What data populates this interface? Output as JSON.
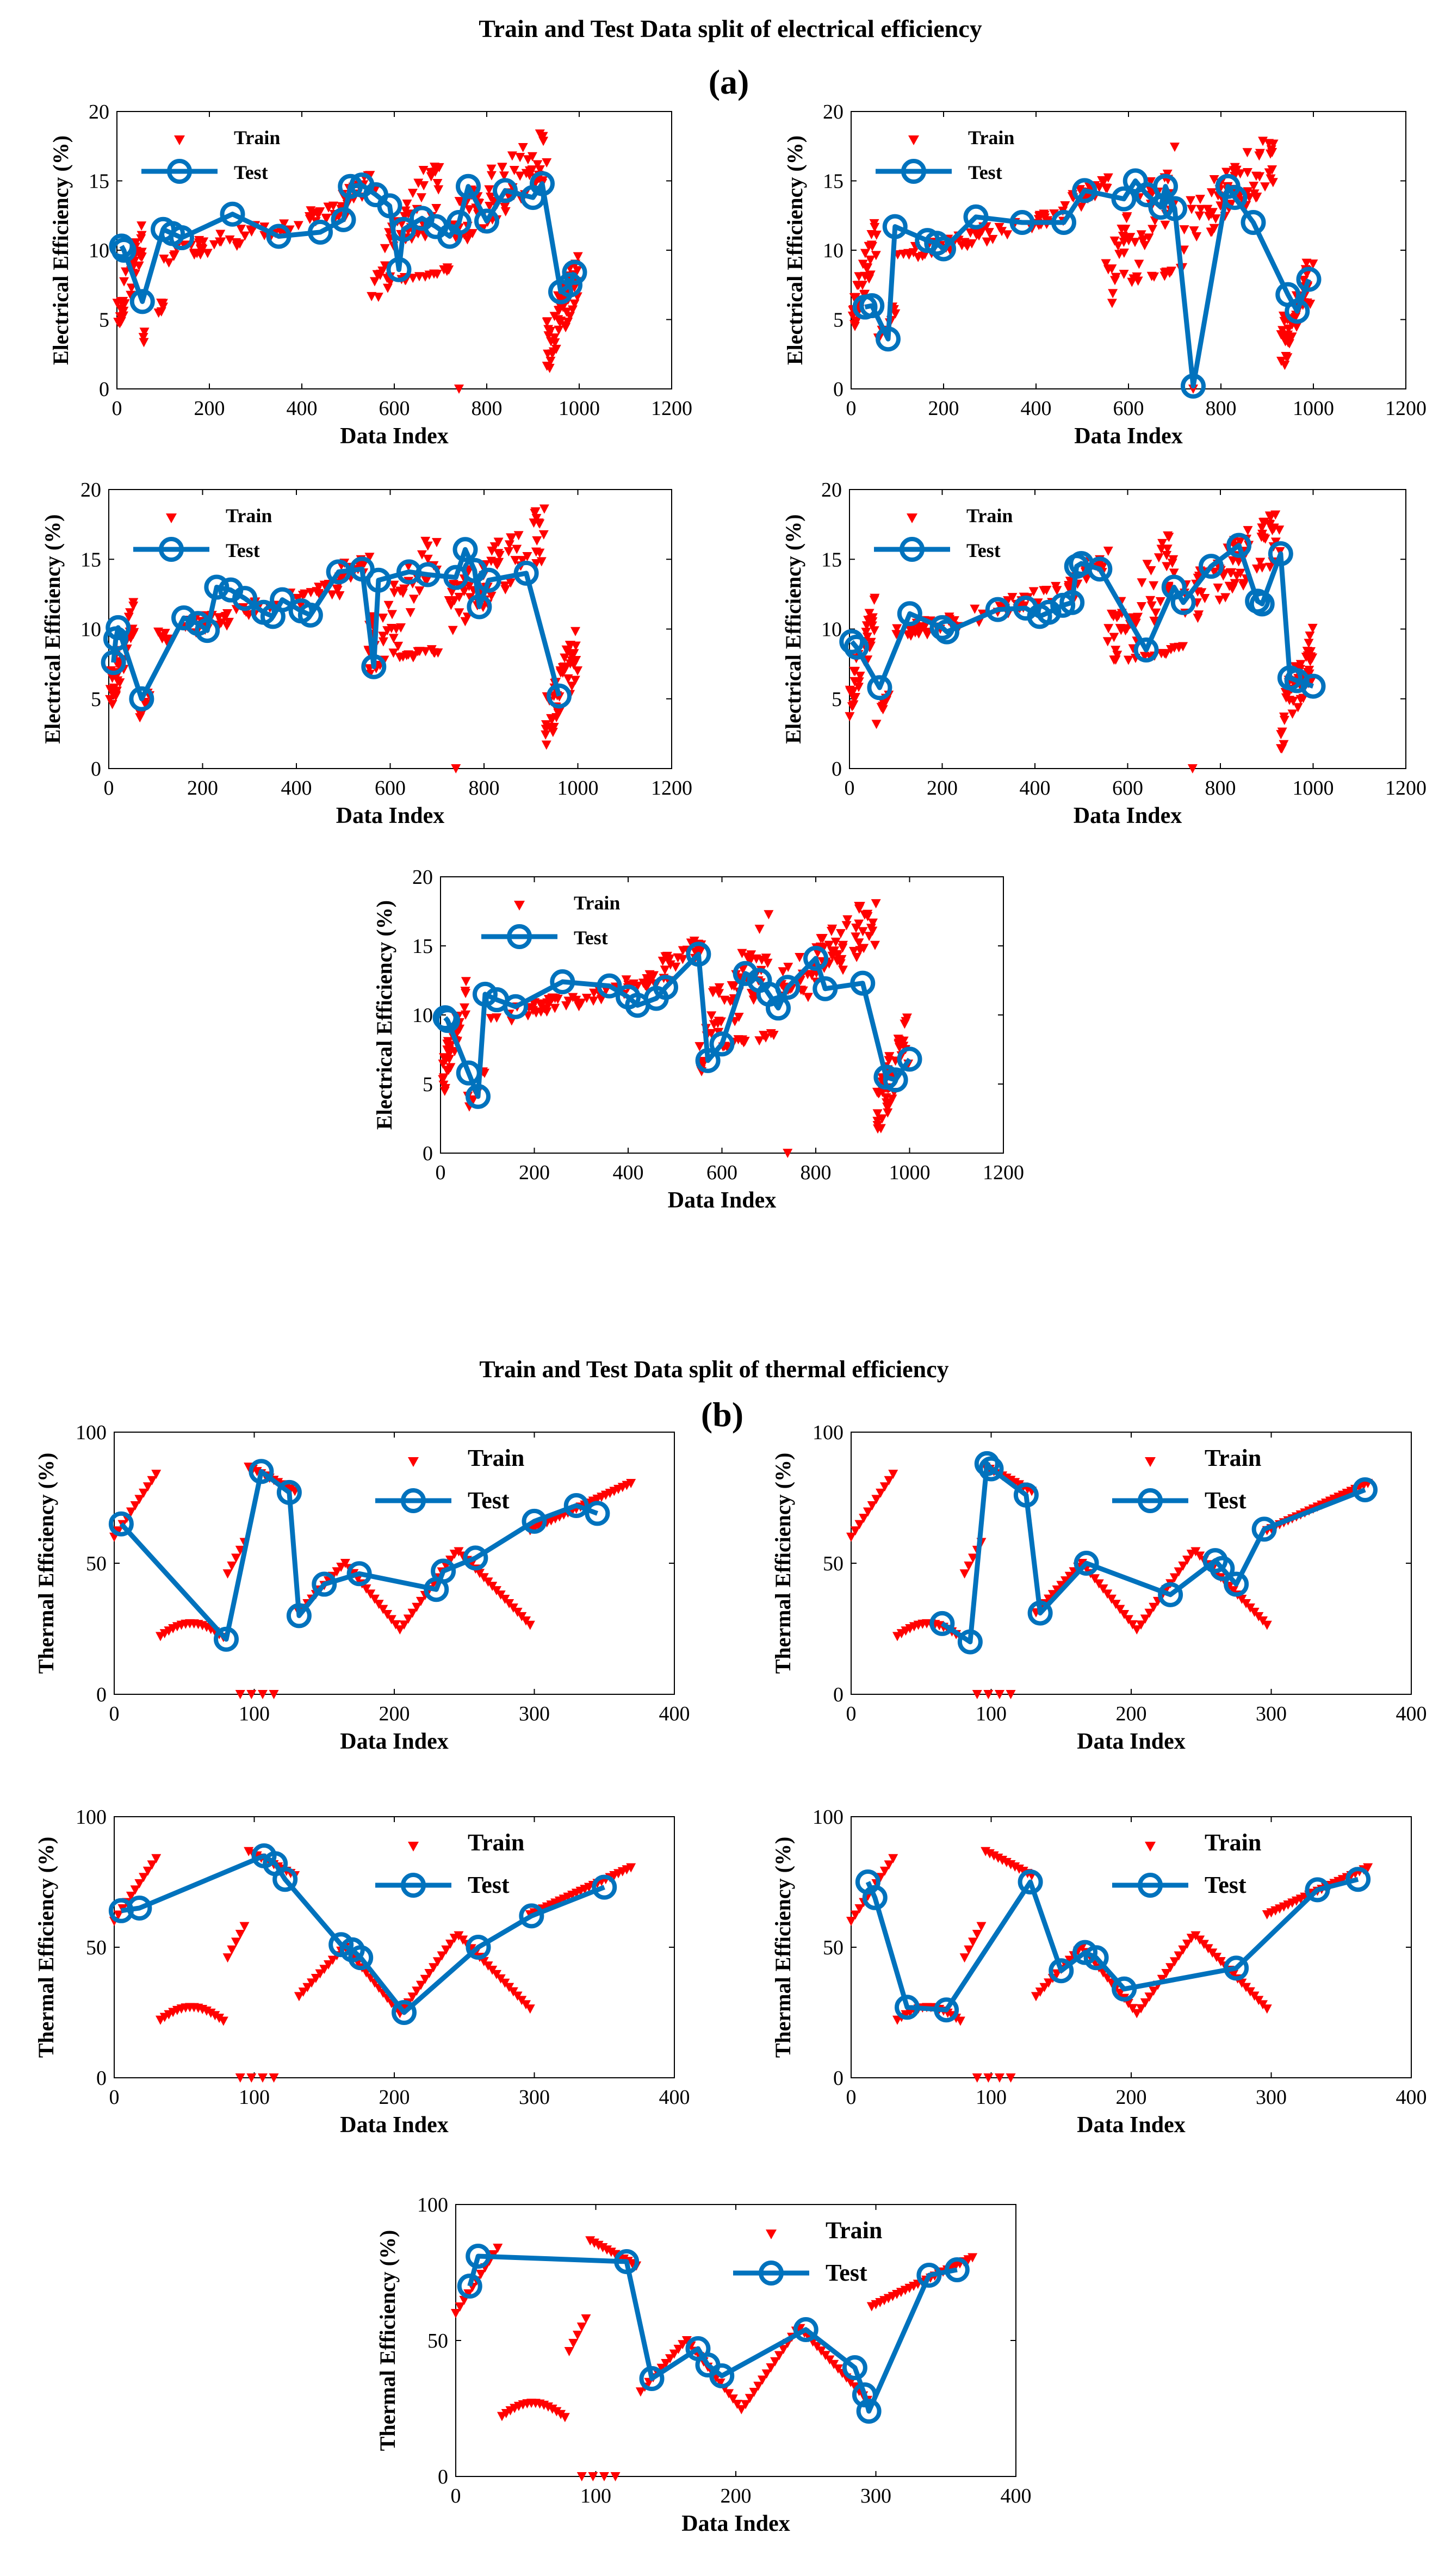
{
  "figure": {
    "section_a": {
      "title": "Train and Test Data split of electrical efficiency",
      "label": "(a)"
    },
    "section_b": {
      "title": "Train and Test Data split of thermal efficiency",
      "label": "(b)"
    }
  },
  "colors": {
    "train": "#ff0000",
    "test": "#0072bd",
    "axis": "#000000",
    "text": "#000000",
    "background": "#ffffff"
  },
  "chart_data": [
    {
      "type": "scatter",
      "section": "a",
      "title": "",
      "xlabel": "Data Index",
      "ylabel": "Electrical Efficiency (%)",
      "xlim": [
        0,
        1200
      ],
      "ylim": [
        0,
        20
      ],
      "xticks": [
        0,
        200,
        400,
        600,
        800,
        1000,
        1200
      ],
      "yticks": [
        0,
        5,
        10,
        15,
        20
      ],
      "legend": [
        "Train",
        "Test"
      ],
      "series": [
        {
          "name": "Test",
          "x": [
            10,
            15,
            55,
            100,
            120,
            140,
            250,
            350,
            440,
            490,
            505,
            530,
            560,
            590,
            610,
            620,
            660,
            690,
            720,
            740,
            760,
            800,
            840,
            900,
            920,
            960,
            980,
            990
          ],
          "y": [
            10.3,
            10.0,
            6.3,
            11.5,
            11.2,
            10.9,
            12.6,
            11.0,
            11.3,
            12.2,
            14.6,
            14.7,
            14.0,
            13.2,
            8.6,
            11.5,
            12.3,
            11.7,
            11.0,
            12.0,
            14.6,
            12.1,
            14.3,
            13.8,
            14.8,
            7.0,
            7.5,
            8.4
          ]
        }
      ]
    },
    {
      "type": "scatter",
      "section": "a",
      "title": "",
      "xlabel": "Data Index",
      "ylabel": "Electrical Efficiency (%)",
      "xlim": [
        0,
        1200
      ],
      "ylim": [
        0,
        20
      ],
      "xticks": [
        0,
        200,
        400,
        600,
        800,
        1000,
        1200
      ],
      "yticks": [
        0,
        5,
        10,
        15,
        20
      ],
      "legend": [
        "Train",
        "Test"
      ],
      "series": [
        {
          "name": "Test",
          "x": [
            30,
            45,
            80,
            95,
            165,
            185,
            200,
            270,
            370,
            460,
            505,
            590,
            615,
            640,
            670,
            680,
            700,
            740,
            815,
            830,
            870,
            945,
            965,
            990
          ],
          "y": [
            5.9,
            6.0,
            3.6,
            11.7,
            10.7,
            10.5,
            10.1,
            12.4,
            12.0,
            12.0,
            14.3,
            13.7,
            15.0,
            14.0,
            13.1,
            14.6,
            13.0,
            0.2,
            14.6,
            13.8,
            12.0,
            6.8,
            5.6,
            7.9
          ]
        }
      ]
    },
    {
      "type": "scatter",
      "section": "a",
      "title": "",
      "xlabel": "Data Index",
      "ylabel": "Electrical Efficiency (%)",
      "xlim": [
        0,
        1200
      ],
      "ylim": [
        0,
        20
      ],
      "xticks": [
        0,
        200,
        400,
        600,
        800,
        1000,
        1200
      ],
      "yticks": [
        0,
        5,
        10,
        15,
        20
      ],
      "legend": [
        "Train",
        "Test"
      ],
      "series": [
        {
          "name": "Test",
          "x": [
            10,
            15,
            20,
            70,
            160,
            190,
            210,
            230,
            260,
            290,
            330,
            350,
            370,
            410,
            430,
            490,
            540,
            565,
            575,
            640,
            680,
            740,
            760,
            780,
            790,
            810,
            890,
            960
          ],
          "y": [
            7.6,
            9.3,
            10.1,
            5.0,
            10.8,
            10.4,
            9.9,
            13.0,
            12.8,
            12.2,
            11.2,
            10.9,
            12.1,
            11.3,
            11.0,
            14.1,
            14.3,
            7.3,
            13.5,
            14.1,
            13.9,
            13.7,
            15.7,
            14.2,
            11.6,
            13.5,
            14.0,
            5.2
          ]
        }
      ]
    },
    {
      "type": "scatter",
      "section": "a",
      "title": "",
      "xlabel": "Data Index",
      "ylabel": "Electrical Efficiency (%)",
      "xlim": [
        0,
        1200
      ],
      "ylim": [
        0,
        20
      ],
      "xticks": [
        0,
        200,
        400,
        600,
        800,
        1000,
        1200
      ],
      "yticks": [
        0,
        5,
        10,
        15,
        20
      ],
      "legend": [
        "Train",
        "Test"
      ],
      "series": [
        {
          "name": "Test",
          "x": [
            5,
            15,
            65,
            130,
            200,
            210,
            320,
            380,
            410,
            430,
            460,
            480,
            490,
            500,
            540,
            640,
            700,
            720,
            780,
            840,
            880,
            890,
            930,
            950,
            965,
            1000
          ],
          "y": [
            9.1,
            8.7,
            5.8,
            11.1,
            10.1,
            9.8,
            11.4,
            11.5,
            10.9,
            11.2,
            11.7,
            11.9,
            14.5,
            14.7,
            14.3,
            8.5,
            13.0,
            11.9,
            14.5,
            16.0,
            12.0,
            11.8,
            15.4,
            6.5,
            6.3,
            5.9
          ]
        }
      ]
    },
    {
      "type": "scatter",
      "section": "a",
      "title": "",
      "xlabel": "Data Index",
      "ylabel": "Electrical Efficiency (%)",
      "xlim": [
        0,
        1200
      ],
      "ylim": [
        0,
        20
      ],
      "xticks": [
        0,
        200,
        400,
        600,
        800,
        1000,
        1200
      ],
      "yticks": [
        0,
        5,
        10,
        15,
        20
      ],
      "legend": [
        "Train",
        "Test"
      ],
      "series": [
        {
          "name": "Test",
          "x": [
            10,
            15,
            60,
            80,
            95,
            120,
            160,
            260,
            360,
            400,
            420,
            460,
            480,
            550,
            570,
            600,
            650,
            680,
            700,
            720,
            740,
            800,
            820,
            900,
            950,
            970,
            1000
          ],
          "y": [
            9.8,
            9.6,
            5.8,
            4.1,
            11.5,
            11.1,
            10.6,
            12.4,
            12.1,
            11.3,
            10.7,
            11.2,
            12.0,
            14.4,
            6.7,
            7.9,
            13.0,
            12.5,
            11.5,
            10.5,
            12.0,
            14.1,
            11.9,
            12.3,
            5.5,
            5.3,
            6.8
          ]
        }
      ]
    },
    {
      "type": "scatter",
      "section": "b",
      "title": "",
      "xlabel": "Data Index",
      "ylabel": "Thermal Efficiency (%)",
      "xlim": [
        0,
        400
      ],
      "ylim": [
        0,
        100
      ],
      "xticks": [
        0,
        100,
        200,
        300,
        400
      ],
      "yticks": [
        0,
        50,
        100
      ],
      "legend": [
        "Train",
        "Test"
      ],
      "series": [
        {
          "name": "Test",
          "x": [
            5,
            80,
            105,
            125,
            132,
            150,
            175,
            230,
            235,
            258,
            300,
            330,
            345
          ],
          "y": [
            65,
            21,
            85,
            77,
            30,
            42,
            46,
            40,
            47,
            52,
            66,
            72,
            69
          ]
        }
      ]
    },
    {
      "type": "scatter",
      "section": "b",
      "title": "",
      "xlabel": "Data Index",
      "ylabel": "Thermal Efficiency (%)",
      "xlim": [
        0,
        400
      ],
      "ylim": [
        0,
        100
      ],
      "xticks": [
        0,
        100,
        200,
        300,
        400
      ],
      "yticks": [
        0,
        50,
        100
      ],
      "legend": [
        "Train",
        "Test"
      ],
      "series": [
        {
          "name": "Test",
          "x": [
            65,
            85,
            97,
            100,
            125,
            135,
            168,
            228,
            260,
            265,
            275,
            295,
            367
          ],
          "y": [
            27,
            20,
            88,
            86,
            76,
            31,
            50,
            38,
            51,
            48,
            42,
            63,
            78
          ]
        }
      ]
    },
    {
      "type": "scatter",
      "section": "b",
      "title": "",
      "xlabel": "Data Index",
      "ylabel": "Thermal Efficiency (%)",
      "xlim": [
        0,
        400
      ],
      "ylim": [
        0,
        100
      ],
      "xticks": [
        0,
        100,
        200,
        300,
        400
      ],
      "yticks": [
        0,
        50,
        100
      ],
      "legend": [
        "Train",
        "Test"
      ],
      "series": [
        {
          "name": "Test",
          "x": [
            5,
            18,
            107,
            115,
            122,
            162,
            170,
            176,
            207,
            260,
            298,
            350
          ],
          "y": [
            64,
            65,
            85,
            82,
            76,
            51,
            49,
            46,
            25,
            50,
            62,
            73
          ]
        }
      ]
    },
    {
      "type": "scatter",
      "section": "b",
      "title": "",
      "xlabel": "Data Index",
      "ylabel": "Thermal Efficiency (%)",
      "xlim": [
        0,
        400
      ],
      "ylim": [
        0,
        100
      ],
      "xticks": [
        0,
        100,
        200,
        300,
        400
      ],
      "yticks": [
        0,
        50,
        100
      ],
      "legend": [
        "Train",
        "Test"
      ],
      "series": [
        {
          "name": "Test",
          "x": [
            12,
            17,
            40,
            68,
            128,
            150,
            167,
            175,
            195,
            275,
            333,
            362
          ],
          "y": [
            75,
            69,
            27,
            26,
            75,
            41,
            48,
            46,
            34,
            42,
            72,
            76
          ]
        }
      ]
    },
    {
      "type": "scatter",
      "section": "b",
      "title": "",
      "xlabel": "Data Index",
      "ylabel": "Thermal Efficiency (%)",
      "xlim": [
        0,
        400
      ],
      "ylim": [
        0,
        100
      ],
      "xticks": [
        0,
        100,
        200,
        300,
        400
      ],
      "yticks": [
        0,
        50,
        100
      ],
      "legend": [
        "Train",
        "Test"
      ],
      "series": [
        {
          "name": "Test",
          "x": [
            10,
            16,
            122,
            140,
            173,
            180,
            190,
            250,
            285,
            292,
            295,
            338,
            358
          ],
          "y": [
            70,
            81,
            79,
            36,
            47,
            41,
            37,
            54,
            40,
            30,
            24,
            74,
            76
          ]
        }
      ]
    }
  ]
}
